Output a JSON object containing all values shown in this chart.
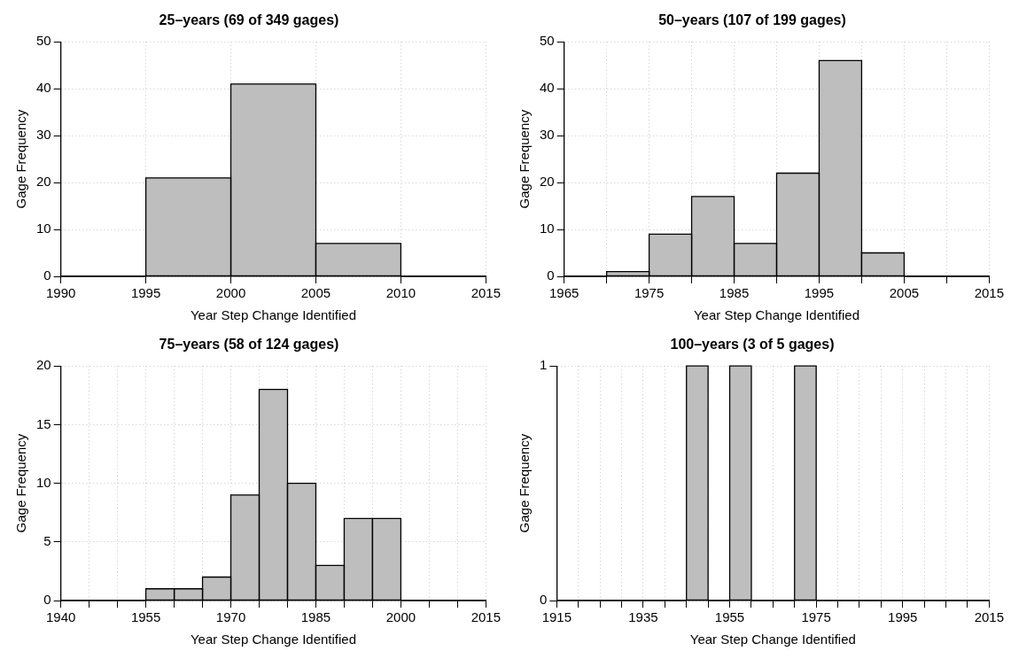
{
  "chart_data": [
    {
      "type": "histogram",
      "title": "25–years (69 of 349 gages)",
      "xlabel": "Year Step Change Identified",
      "ylabel": "Gage Frequency",
      "color": "#bebebe",
      "bins": [
        1990,
        1995,
        2000,
        2005,
        2010,
        2015
      ],
      "values": [
        0,
        21,
        41,
        7,
        0
      ],
      "xlim": [
        1990,
        2015
      ],
      "xticks": [
        1990,
        1995,
        2000,
        2005,
        2010,
        2015
      ],
      "ylim": [
        0,
        50
      ],
      "yticks": [
        0,
        10,
        20,
        30,
        40,
        50
      ],
      "grid": true
    },
    {
      "type": "histogram",
      "title": "50–years (107 of 199 gages)",
      "xlabel": "Year Step Change Identified",
      "ylabel": "Gage Frequency",
      "color": "#bebebe",
      "bins": [
        1965,
        1970,
        1975,
        1980,
        1985,
        1990,
        1995,
        2000,
        2005,
        2010,
        2015
      ],
      "values": [
        0,
        1,
        9,
        17,
        7,
        22,
        46,
        5,
        0,
        0
      ],
      "xlim": [
        1965,
        2015
      ],
      "xticks": [
        1965,
        {
          "value": 1970,
          "label": null
        },
        1975,
        {
          "value": 1980,
          "label": null
        },
        1985,
        {
          "value": 1990,
          "label": null
        },
        1995,
        {
          "value": 2000,
          "label": null
        },
        2005,
        {
          "value": 2010,
          "label": null
        },
        2015
      ],
      "ylim": [
        0,
        50
      ],
      "yticks": [
        0,
        10,
        20,
        30,
        40,
        50
      ],
      "grid": true
    },
    {
      "type": "histogram",
      "title": "75–years (58 of 124 gages)",
      "xlabel": "Year Step Change Identified",
      "ylabel": "Gage Frequency",
      "color": "#bebebe",
      "bins": [
        1940,
        1945,
        1950,
        1955,
        1960,
        1965,
        1970,
        1975,
        1980,
        1985,
        1990,
        1995,
        2000,
        2005,
        2010,
        2015
      ],
      "values": [
        0,
        0,
        0,
        1,
        1,
        2,
        9,
        18,
        10,
        3,
        7,
        7,
        0,
        0,
        0
      ],
      "xlim": [
        1940,
        2015
      ],
      "xticks": [
        1940,
        {
          "value": 1945,
          "label": null
        },
        {
          "value": 1950,
          "label": null
        },
        1955,
        {
          "value": 1960,
          "label": null
        },
        {
          "value": 1965,
          "label": null
        },
        1970,
        {
          "value": 1975,
          "label": null
        },
        {
          "value": 1980,
          "label": null
        },
        1985,
        {
          "value": 1990,
          "label": null
        },
        {
          "value": 1995,
          "label": null
        },
        2000,
        {
          "value": 2005,
          "label": null
        },
        {
          "value": 2010,
          "label": null
        },
        2015
      ],
      "ylim": [
        0,
        20
      ],
      "yticks": [
        0,
        5,
        10,
        15,
        20
      ],
      "grid": true
    },
    {
      "type": "histogram",
      "title": "100–years (3 of 5 gages)",
      "xlabel": "Year Step Change Identified",
      "ylabel": "Gage Frequency",
      "color": "#bebebe",
      "bins": [
        1915,
        1920,
        1925,
        1930,
        1935,
        1940,
        1945,
        1950,
        1955,
        1960,
        1965,
        1970,
        1975,
        1980,
        1985,
        1990,
        1995,
        2000,
        2005,
        2010,
        2015
      ],
      "values": [
        0,
        0,
        0,
        0,
        0,
        0,
        1,
        0,
        1,
        0,
        0,
        1,
        0,
        0,
        0,
        0,
        0,
        0,
        0,
        0
      ],
      "xlim": [
        1915,
        2015
      ],
      "xticks": [
        1915,
        {
          "value": 1920,
          "label": null
        },
        {
          "value": 1925,
          "label": null
        },
        {
          "value": 1930,
          "label": null
        },
        1935,
        {
          "value": 1940,
          "label": null
        },
        {
          "value": 1945,
          "label": null
        },
        {
          "value": 1950,
          "label": null
        },
        1955,
        {
          "value": 1960,
          "label": null
        },
        {
          "value": 1965,
          "label": null
        },
        {
          "value": 1970,
          "label": null
        },
        1975,
        {
          "value": 1980,
          "label": null
        },
        {
          "value": 1985,
          "label": null
        },
        {
          "value": 1990,
          "label": null
        },
        1995,
        {
          "value": 2000,
          "label": null
        },
        {
          "value": 2005,
          "label": null
        },
        {
          "value": 2010,
          "label": null
        },
        2015
      ],
      "ylim": [
        0,
        1
      ],
      "yticks": [
        0,
        1
      ],
      "grid": true
    }
  ]
}
